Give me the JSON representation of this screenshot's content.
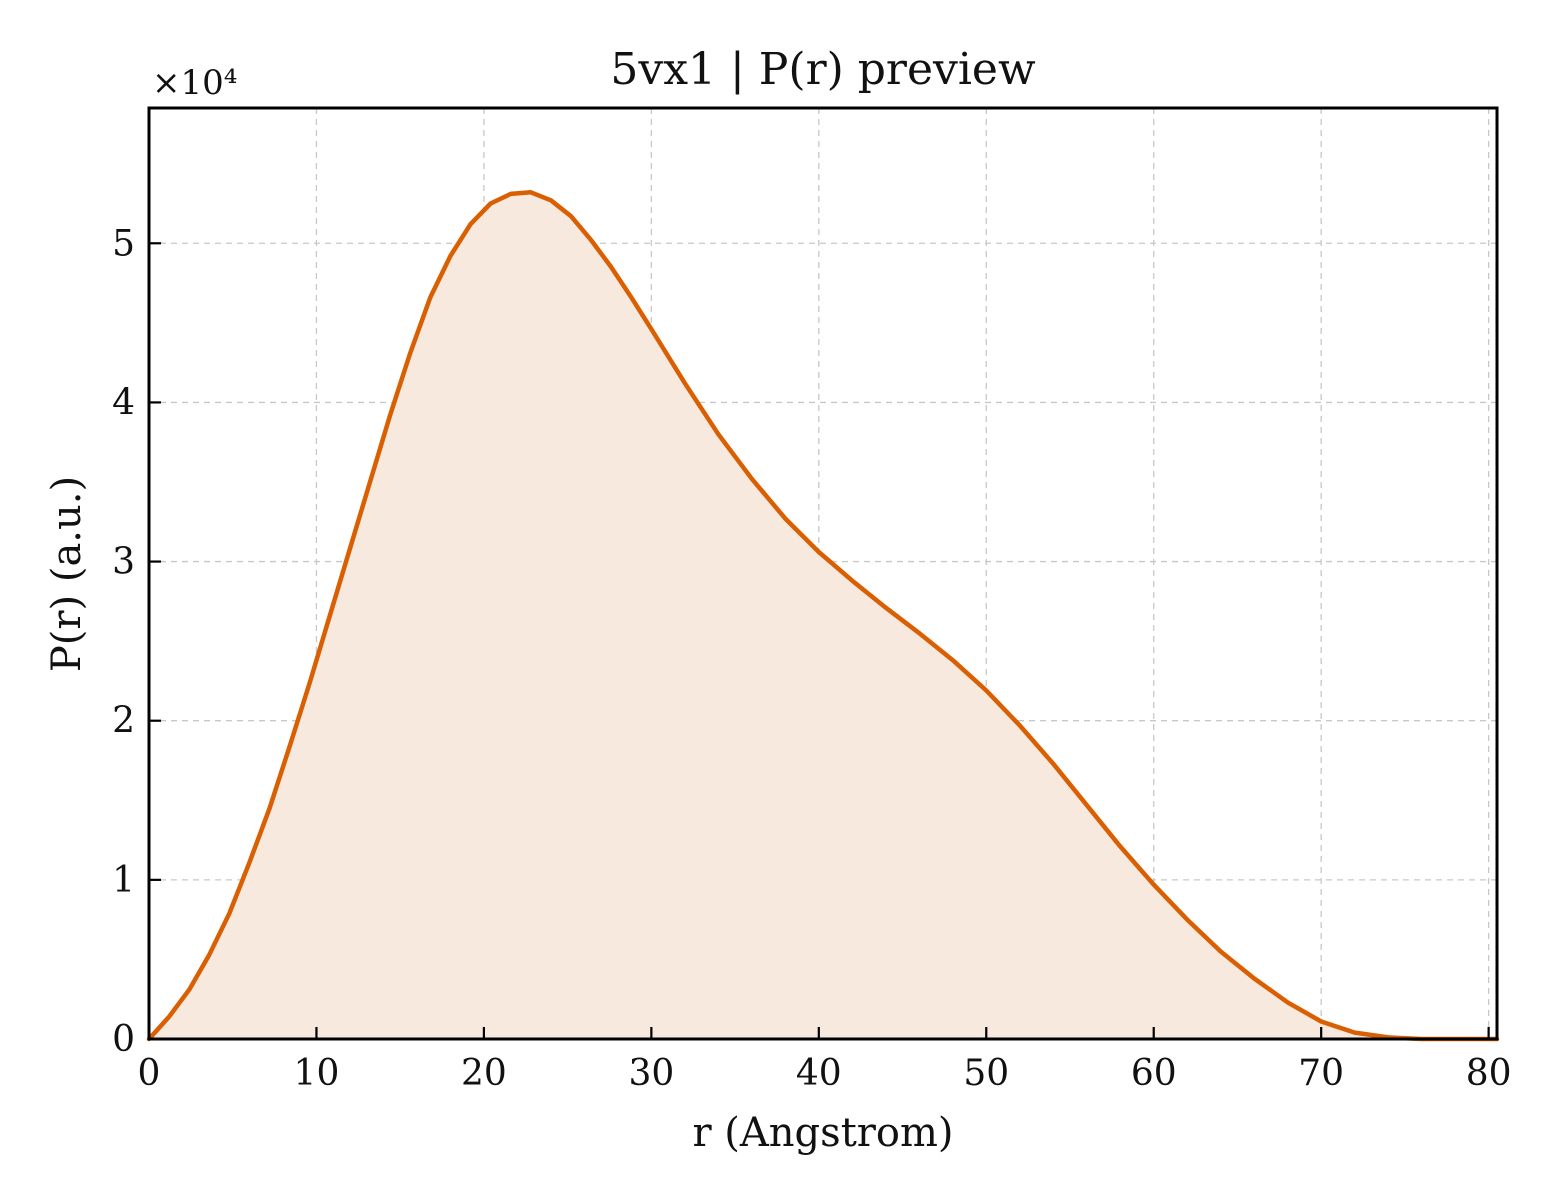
{
  "chart_data": {
    "type": "area",
    "title": "5vx1 | P(r) preview",
    "xlabel": "r (Angstrom)",
    "ylabel": "P(r) (a.u.)",
    "y_multiplier_label": "×10⁴",
    "xlim": [
      0,
      80.5
    ],
    "ylim": [
      0,
      5.85
    ],
    "xticks": [
      0,
      10,
      20,
      30,
      40,
      50,
      60,
      70,
      80
    ],
    "yticks": [
      0,
      1,
      2,
      3,
      4,
      5
    ],
    "xtick_labels": [
      "0",
      "10",
      "20",
      "30",
      "40",
      "50",
      "60",
      "70",
      "80"
    ],
    "ytick_labels": [
      "0",
      "1",
      "2",
      "3",
      "4",
      "5"
    ],
    "grid": true,
    "line_color": "#d95f02",
    "fill_color": "#f8e9df",
    "series": [
      {
        "x": [
          0,
          1.2,
          2.4,
          3.6,
          4.8,
          6.0,
          7.2,
          8.4,
          9.6,
          10.8,
          12.0,
          13.2,
          14.4,
          15.6,
          16.8,
          18.0,
          19.2,
          20.4,
          21.6,
          22.8,
          24.0,
          25.2,
          26.4,
          27.6,
          28.8,
          30.0,
          32.0,
          34.0,
          36.0,
          38.0,
          40.0,
          42.0,
          44.0,
          46.0,
          48.0,
          50.0,
          52.0,
          54.0,
          56.0,
          58.0,
          60.0,
          62.0,
          64.0,
          66.0,
          68.0,
          70.0,
          72.0,
          74.0,
          76.0,
          78.0,
          80.0,
          80.5
        ],
        "y": [
          0,
          0.14,
          0.31,
          0.53,
          0.79,
          1.11,
          1.45,
          1.84,
          2.24,
          2.66,
          3.08,
          3.5,
          3.92,
          4.31,
          4.66,
          4.92,
          5.12,
          5.25,
          5.31,
          5.32,
          5.27,
          5.17,
          5.02,
          4.85,
          4.66,
          4.46,
          4.12,
          3.8,
          3.52,
          3.27,
          3.06,
          2.88,
          2.71,
          2.55,
          2.38,
          2.19,
          1.97,
          1.73,
          1.47,
          1.21,
          0.97,
          0.75,
          0.55,
          0.38,
          0.23,
          0.11,
          0.04,
          0.01,
          0.0,
          0.0,
          0.0,
          0.0
        ]
      }
    ]
  }
}
